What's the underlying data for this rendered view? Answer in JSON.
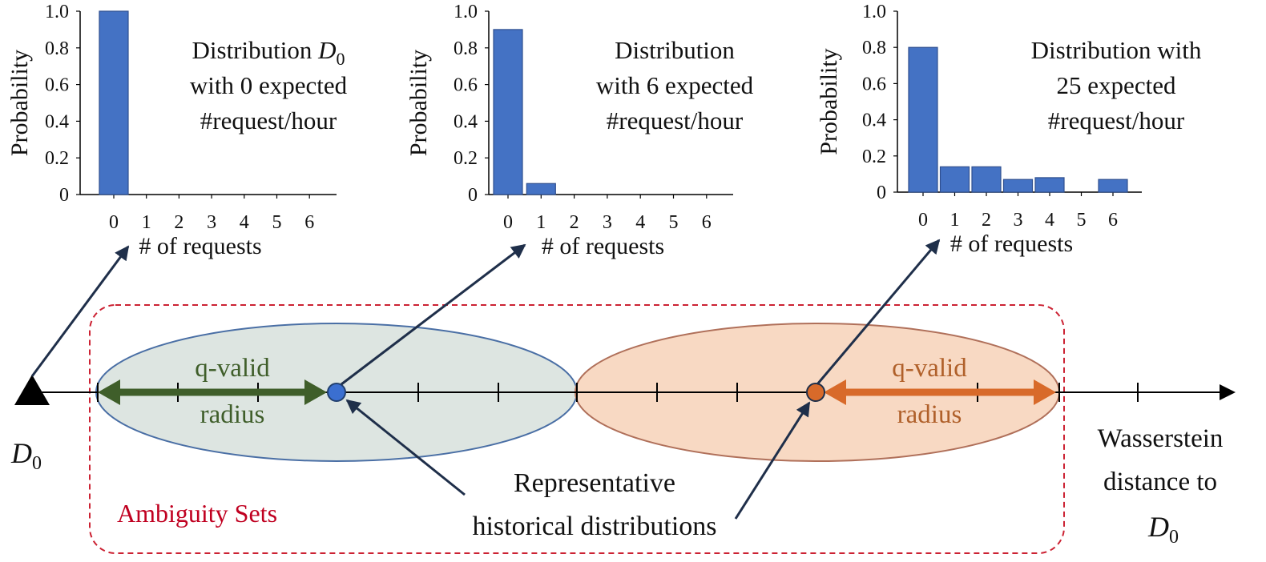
{
  "colors": {
    "bar": "#4472C4",
    "bar_stroke": "#2F4F8F",
    "left_ellipse_fill": "#DDE5E1",
    "left_ellipse_stroke": "#4A6FA5",
    "right_ellipse_fill": "#F8D9C3",
    "right_ellipse_stroke": "#B0705A",
    "left_arrow": "#3F5E2A",
    "right_arrow": "#D86A2A",
    "ambiguity_border": "#CC2233",
    "ambiguity_text": "#C00020",
    "pointer_arrow": "#1F2F4A"
  },
  "chart_data": [
    {
      "type": "bar",
      "categories": [
        "0",
        "1",
        "2",
        "3",
        "4",
        "5",
        "6"
      ],
      "values": [
        1.0,
        0,
        0,
        0,
        0,
        0,
        0
      ],
      "ylabel": "Probability",
      "xlabel": "# of requests",
      "yticks": [
        "0",
        "0.2",
        "0.4",
        "0.6",
        "0.8",
        "1.0"
      ],
      "ylim": [
        0,
        1.0
      ],
      "annotation": [
        "Distribution ",
        "D",
        "0",
        "with 0 expected",
        "#request/hour"
      ]
    },
    {
      "type": "bar",
      "categories": [
        "0",
        "1",
        "2",
        "3",
        "4",
        "5",
        "6"
      ],
      "values": [
        0.9,
        0.06,
        0,
        0,
        0,
        0,
        0
      ],
      "ylabel": "Probability",
      "xlabel": "# of requests",
      "yticks": [
        "0",
        "0.2",
        "0.4",
        "0.6",
        "0.8",
        "1.0"
      ],
      "ylim": [
        0,
        1.0
      ],
      "annotation": [
        "Distribution",
        "with 6 expected",
        "#request/hour"
      ]
    },
    {
      "type": "bar",
      "categories": [
        "0",
        "1",
        "2",
        "3",
        "4",
        "5",
        "6"
      ],
      "values": [
        0.8,
        0.14,
        0.14,
        0.07,
        0.08,
        0,
        0.07
      ],
      "ylabel": "Probability",
      "xlabel": "# of requests",
      "yticks": [
        "0",
        "0.2",
        "0.4",
        "0.6",
        "0.8",
        "1.0"
      ],
      "ylim": [
        0,
        1.0
      ],
      "annotation": [
        "Distribution with",
        "25 expected",
        "#request/hour"
      ]
    }
  ],
  "diagram": {
    "origin_label": "D",
    "origin_sub": "0",
    "left_radius_label": [
      "q-valid",
      "radius"
    ],
    "right_radius_label": [
      "q-valid",
      "radius"
    ],
    "axis_title": [
      "Wasserstein",
      "distance to"
    ],
    "axis_title_var": "D",
    "axis_title_sub": "0",
    "representative_label": [
      "Representative",
      "historical distributions"
    ],
    "ambiguity_label": "Ambiguity Sets"
  }
}
